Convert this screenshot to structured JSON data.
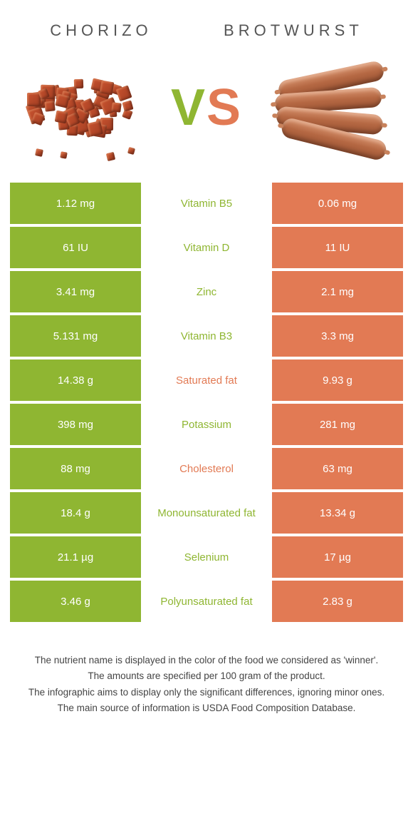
{
  "food1": {
    "name": "CHORIZO",
    "color": "#8fb632"
  },
  "food2": {
    "name": "BROTWURST",
    "color": "#e27a54"
  },
  "vs": {
    "v": "V",
    "s": "S"
  },
  "rows": [
    {
      "nutrient": "Vitamin B5",
      "v1": "1.12 mg",
      "v2": "0.06 mg",
      "winner": 1
    },
    {
      "nutrient": "Vitamin D",
      "v1": "61 IU",
      "v2": "11 IU",
      "winner": 1
    },
    {
      "nutrient": "Zinc",
      "v1": "3.41 mg",
      "v2": "2.1 mg",
      "winner": 1
    },
    {
      "nutrient": "Vitamin B3",
      "v1": "5.131 mg",
      "v2": "3.3 mg",
      "winner": 1
    },
    {
      "nutrient": "Saturated fat",
      "v1": "14.38 g",
      "v2": "9.93 g",
      "winner": 2
    },
    {
      "nutrient": "Potassium",
      "v1": "398 mg",
      "v2": "281 mg",
      "winner": 1
    },
    {
      "nutrient": "Cholesterol",
      "v1": "88 mg",
      "v2": "63 mg",
      "winner": 2
    },
    {
      "nutrient": "Monounsaturated fat",
      "v1": "18.4 g",
      "v2": "13.34 g",
      "winner": 1
    },
    {
      "nutrient": "Selenium",
      "v1": "21.1 µg",
      "v2": "17 µg",
      "winner": 1
    },
    {
      "nutrient": "Polyunsaturated fat",
      "v1": "3.46 g",
      "v2": "2.83 g",
      "winner": 1
    }
  ],
  "footer": [
    "The nutrient name is displayed in the color of the food we considered as 'winner'.",
    "The amounts are specified per 100 gram of the product.",
    "The infographic aims to display only the significant differences, ignoring minor ones.",
    "The main source of information is USDA Food Composition Database."
  ]
}
